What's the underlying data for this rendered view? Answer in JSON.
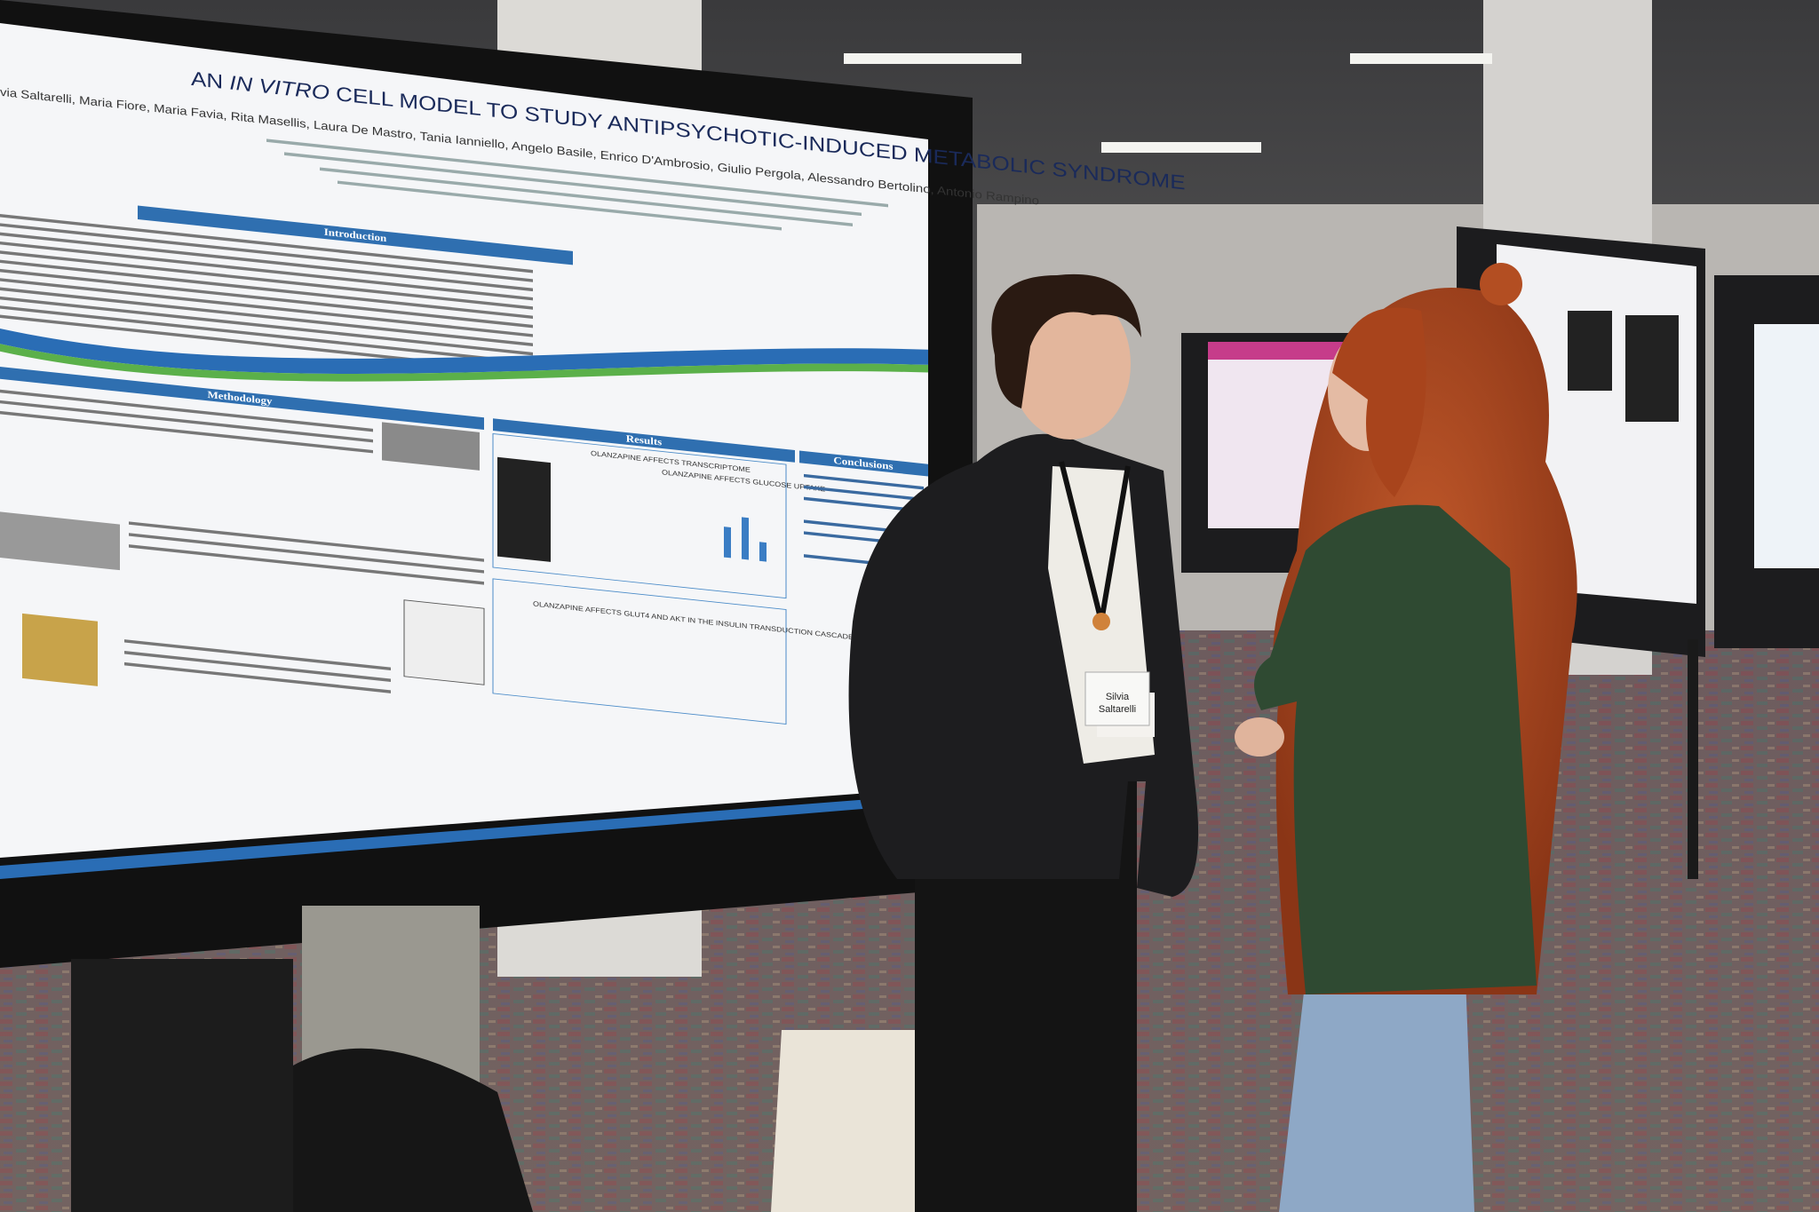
{
  "poster": {
    "title_start": "AN",
    "title_italic": "IN VITRO",
    "title_end": "CELL MODEL TO STUDY ANTIPSYCHOTIC-INDUCED METABOLIC SYNDROME",
    "authors": "via Saltarelli, Maria Fiore, Maria Favia, Rita Masellis, Laura De Mastro, Tania Ianniello, Angelo Basile, Enrico D'Ambrosio, Giulio Pergola, Alessandro Bertolino, Antonio Rampino",
    "sections": [
      "Introduction",
      "Methodology",
      "Results",
      "Conclusions"
    ],
    "result_panels": [
      "OLANZAPINE AFFECTS TRANSCRIPTOME",
      "OLANZAPINE AFFECTS GLUCOSE UPTAKE",
      "OLANZAPINE AFFECTS GLUT4 AND AKT IN THE INSULIN TRANSDUCTION CASCADE"
    ]
  },
  "badge": {
    "first": "Silvia",
    "last": "Saltarelli"
  }
}
